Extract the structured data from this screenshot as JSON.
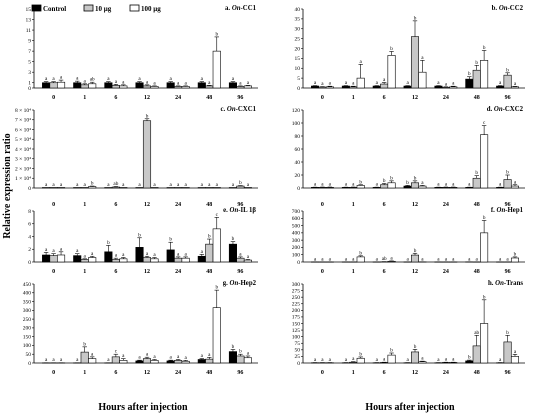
{
  "figure": {
    "ylabel": "Relative expression ratio",
    "xlabel": "Hours after injection",
    "legend": [
      "Control",
      "10 μg",
      "100 μg"
    ],
    "colors": {
      "control": "#000000",
      "dose10": "#c8c8c8",
      "dose100": "#ffffff",
      "stroke": "#000000"
    }
  },
  "chart_data": [
    {
      "id": "a",
      "type": "bar",
      "title_prefix": "a. ",
      "title_gene": "On",
      "title_suffix": "-CC1",
      "categories": [
        "0",
        "1",
        "6",
        "12",
        "24",
        "48",
        "96"
      ],
      "ylim": [
        0,
        15
      ],
      "yticks": [
        0,
        1,
        3,
        5,
        7,
        9,
        11,
        13,
        15
      ],
      "series": [
        {
          "name": "Control",
          "values": [
            1.0,
            1.0,
            1.0,
            1.0,
            1.0,
            1.0,
            1.0
          ],
          "errors": [
            0.2,
            0.3,
            0.2,
            0.2,
            0.2,
            0.2,
            0.2
          ],
          "letters": [
            "a",
            "a",
            "a",
            "a",
            "a",
            "a",
            "a"
          ]
        },
        {
          "name": "10 μg",
          "values": [
            1.0,
            0.6,
            0.5,
            0.4,
            0.3,
            0.4,
            0.3
          ],
          "errors": [
            0.2,
            0.2,
            0.2,
            0.2,
            0.1,
            0.1,
            0.1
          ],
          "letters": [
            "a",
            "a",
            "a",
            "a",
            "a",
            "a",
            "a"
          ]
        },
        {
          "name": "100 μg",
          "values": [
            1.1,
            0.8,
            0.4,
            0.3,
            0.3,
            7.0,
            0.4
          ],
          "errors": [
            0.4,
            0.3,
            0.2,
            0.1,
            0.1,
            2.7,
            0.1
          ],
          "letters": [
            "a",
            "ab",
            "a",
            "a",
            "a",
            "b",
            "a"
          ]
        }
      ]
    },
    {
      "id": "b",
      "type": "bar",
      "title_prefix": "b. ",
      "title_gene": "On",
      "title_suffix": "-CC2",
      "categories": [
        "0",
        "1",
        "6",
        "12",
        "24",
        "48",
        "96"
      ],
      "ylim": [
        0,
        40
      ],
      "yticks": [
        0,
        5,
        10,
        15,
        20,
        25,
        30,
        35,
        40
      ],
      "series": [
        {
          "name": "Control",
          "values": [
            1.0,
            1.0,
            1.0,
            1.0,
            1.0,
            4.5,
            1.0
          ],
          "errors": [
            0.2,
            0.2,
            0.2,
            0.2,
            0.2,
            1.2,
            0.2
          ],
          "letters": [
            "a",
            "a",
            "a",
            "a",
            "a",
            "b",
            "a"
          ]
        },
        {
          "name": "10 μg",
          "values": [
            0.5,
            0.6,
            2.0,
            26.0,
            0.4,
            9.0,
            6.5
          ],
          "errors": [
            0.2,
            0.3,
            0.8,
            8.0,
            0.2,
            2.5,
            1.2
          ],
          "letters": [
            "a",
            "a",
            "a",
            "b",
            "a",
            "b",
            "b"
          ]
        },
        {
          "name": "100 μg",
          "values": [
            0.6,
            5.0,
            16.5,
            8.0,
            0.6,
            14.0,
            0.6
          ],
          "errors": [
            0.3,
            7.0,
            2.0,
            6.0,
            0.3,
            5.0,
            0.2
          ],
          "letters": [
            "a",
            "a",
            "b",
            "a",
            "a",
            "b",
            "a"
          ]
        }
      ]
    },
    {
      "id": "c",
      "type": "bar",
      "title_prefix": "c. ",
      "title_gene": "On",
      "title_suffix": "-CXC1",
      "categories": [
        "0",
        "1",
        "6",
        "12",
        "24",
        "48",
        "96"
      ],
      "ylim": [
        0,
        8
      ],
      "yticks": [
        0,
        1,
        2,
        3,
        4,
        5,
        6,
        7,
        8
      ],
      "ytick_labels": [
        "0",
        "1 × 10⁴",
        "2 × 10⁴",
        "3 × 10⁴",
        "4 × 10⁴",
        "5 × 10⁴",
        "6 × 10⁴",
        "7 × 10⁴",
        "8 × 10⁴"
      ],
      "series": [
        {
          "name": "Control",
          "values": [
            0.05,
            0.05,
            0.05,
            0.05,
            0.05,
            0.05,
            0.05
          ],
          "errors": [
            0,
            0,
            0,
            0,
            0,
            0,
            0
          ],
          "letters": [
            "a",
            "a",
            "a",
            "a",
            "a",
            "a",
            "a"
          ]
        },
        {
          "name": "10 μg",
          "values": [
            0.05,
            0.05,
            0.1,
            6.9,
            0.05,
            0.05,
            0.2
          ],
          "errors": [
            0,
            0,
            0.05,
            0.2,
            0,
            0,
            0.05
          ],
          "letters": [
            "a",
            "a",
            "ab",
            "b",
            "a",
            "a",
            "b"
          ]
        },
        {
          "name": "100 μg",
          "values": [
            0.05,
            0.15,
            0.05,
            0.05,
            0.05,
            0.05,
            0.05
          ],
          "errors": [
            0,
            0.05,
            0,
            0,
            0,
            0,
            0
          ],
          "letters": [
            "a",
            "b",
            "a",
            "a",
            "a",
            "a",
            "a"
          ]
        }
      ]
    },
    {
      "id": "d",
      "type": "bar",
      "title_prefix": "d. ",
      "title_gene": "On",
      "title_suffix": "-CXC2",
      "categories": [
        "0",
        "1",
        "6",
        "12",
        "24",
        "48",
        "96"
      ],
      "ylim": [
        0,
        120
      ],
      "yticks": [
        0,
        20,
        40,
        60,
        80,
        100,
        120
      ],
      "series": [
        {
          "name": "Control",
          "values": [
            1,
            1,
            1,
            3,
            1,
            1,
            1
          ],
          "errors": [
            0.3,
            0.3,
            0.3,
            1,
            0.3,
            0.3,
            0.3
          ],
          "letters": [
            "a",
            "a",
            "a",
            "b",
            "a",
            "a",
            "a"
          ]
        },
        {
          "name": "10 μg",
          "values": [
            1,
            1,
            5,
            8,
            1,
            15,
            13
          ],
          "errors": [
            0.5,
            0.5,
            2,
            3,
            0.5,
            4,
            7
          ],
          "letters": [
            "a",
            "a",
            "b",
            "b",
            "a",
            "b",
            "b"
          ]
        },
        {
          "name": "100 μg",
          "values": [
            1,
            4,
            8,
            3,
            1,
            82,
            3
          ],
          "errors": [
            0.5,
            1,
            3,
            1,
            0.5,
            14,
            2
          ],
          "letters": [
            "a",
            "b",
            "b",
            "a",
            "a",
            "c",
            "a"
          ]
        }
      ]
    },
    {
      "id": "e",
      "type": "bar",
      "title_prefix": "e. ",
      "title_gene": "On",
      "title_suffix": "-IL 1β",
      "categories": [
        "0",
        "1",
        "6",
        "12",
        "24",
        "48",
        "96"
      ],
      "ylim": [
        0,
        8
      ],
      "yticks": [
        0,
        2,
        4,
        6,
        8
      ],
      "series": [
        {
          "name": "Control",
          "values": [
            1.1,
            1.0,
            1.6,
            2.3,
            1.9,
            0.9,
            2.8
          ],
          "errors": [
            0.4,
            0.3,
            1.0,
            1.5,
            1.2,
            0.3,
            0.4
          ],
          "letters": [
            "a",
            "a",
            "b",
            "b",
            "b",
            "a",
            "b"
          ]
        },
        {
          "name": "10 μg",
          "values": [
            1.0,
            0.4,
            0.4,
            0.7,
            0.6,
            2.8,
            0.6
          ],
          "errors": [
            0.3,
            0.1,
            0.2,
            0.2,
            0.2,
            0.8,
            0.2
          ],
          "letters": [
            "a",
            "a",
            "a",
            "a",
            "a",
            "b",
            "a"
          ]
        },
        {
          "name": "100 μg",
          "values": [
            1.1,
            0.7,
            0.5,
            0.5,
            0.6,
            5.2,
            0.3
          ],
          "errors": [
            0.5,
            0.2,
            0.2,
            0.2,
            0.2,
            1.8,
            0.1
          ],
          "letters": [
            "a",
            "a",
            "a",
            "a",
            "a",
            "c",
            "a"
          ]
        }
      ]
    },
    {
      "id": "f",
      "type": "bar",
      "title_prefix": "f. ",
      "title_gene": "On",
      "title_suffix": "-Hep1",
      "categories": [
        "0",
        "1",
        "6",
        "12",
        "24",
        "48",
        "96"
      ],
      "ylim": [
        0,
        700
      ],
      "yticks": [
        0,
        100,
        200,
        300,
        400,
        500,
        600,
        700
      ],
      "series": [
        {
          "name": "Control",
          "values": [
            1,
            1,
            1,
            1,
            1,
            2,
            1
          ],
          "errors": [
            0.5,
            0.5,
            0.5,
            0.5,
            0.5,
            1,
            0.5
          ],
          "letters": [
            "a",
            "a",
            "a",
            "a",
            "a",
            "a",
            "a"
          ]
        },
        {
          "name": "10 μg",
          "values": [
            1,
            1,
            3,
            95,
            1,
            1,
            1
          ],
          "errors": [
            0.5,
            0.5,
            2,
            25,
            0.5,
            0.5,
            0.5
          ],
          "letters": [
            "a",
            "a",
            "ab",
            "b",
            "a",
            "a",
            "a"
          ]
        },
        {
          "name": "100 μg",
          "values": [
            1,
            70,
            10,
            2,
            1,
            400,
            55
          ],
          "errors": [
            0.5,
            15,
            5,
            1,
            0.5,
            170,
            15
          ],
          "letters": [
            "a",
            "b",
            "a",
            "a",
            "a",
            "b",
            "b"
          ]
        }
      ]
    },
    {
      "id": "g",
      "type": "bar",
      "title_prefix": "g. ",
      "title_gene": "On",
      "title_suffix": "-Hep2",
      "categories": [
        "0",
        "1",
        "6",
        "12",
        "24",
        "48",
        "96"
      ],
      "ylim": [
        0,
        450
      ],
      "yticks": [
        0,
        50,
        100,
        150,
        200,
        250,
        300,
        350,
        400,
        450
      ],
      "series": [
        {
          "name": "Control",
          "values": [
            1,
            1,
            1,
            12,
            12,
            20,
            65
          ],
          "errors": [
            0.5,
            0.5,
            0.5,
            4,
            4,
            5,
            12
          ],
          "letters": [
            "a",
            "a",
            "a",
            "a",
            "a",
            "a",
            "b"
          ]
        },
        {
          "name": "10 μg",
          "values": [
            1,
            62,
            35,
            25,
            15,
            22,
            40
          ],
          "errors": [
            0.5,
            30,
            15,
            8,
            5,
            10,
            10
          ],
          "letters": [
            "a",
            "b",
            "c",
            "a",
            "a",
            "a",
            "b"
          ]
        },
        {
          "name": "100 μg",
          "values": [
            1,
            25,
            15,
            15,
            10,
            315,
            30
          ],
          "errors": [
            0.5,
            10,
            10,
            5,
            5,
            100,
            10
          ],
          "letters": [
            "a",
            "a",
            "a",
            "a",
            "a",
            "b",
            "a"
          ]
        }
      ]
    },
    {
      "id": "h",
      "type": "bar",
      "title_prefix": "h. ",
      "title_gene": "On",
      "title_suffix": "-Trans",
      "categories": [
        "0",
        "1",
        "6",
        "12",
        "24",
        "48",
        "96"
      ],
      "ylim": [
        0,
        300
      ],
      "yticks": [
        0,
        25,
        50,
        75,
        100,
        125,
        150,
        175,
        200,
        225,
        250,
        275,
        300
      ],
      "series": [
        {
          "name": "Control",
          "values": [
            1,
            1,
            1,
            1,
            1,
            8,
            1
          ],
          "errors": [
            0.5,
            0.5,
            0.5,
            0.5,
            0.5,
            3,
            0.5
          ],
          "letters": [
            "a",
            "a",
            "a",
            "a",
            "a",
            "b",
            "a"
          ]
        },
        {
          "name": "10 μg",
          "values": [
            1,
            3,
            2,
            42,
            2,
            65,
            80
          ],
          "errors": [
            0.5,
            2,
            1,
            10,
            1,
            40,
            25
          ],
          "letters": [
            "a",
            "a",
            "a",
            "b",
            "a",
            "ab",
            "b"
          ]
        },
        {
          "name": "100 μg",
          "values": [
            1,
            18,
            30,
            5,
            2,
            150,
            25
          ],
          "errors": [
            0.5,
            5,
            8,
            2,
            1,
            90,
            8
          ],
          "letters": [
            "a",
            "b",
            "b",
            "a",
            "a",
            "b",
            "a"
          ]
        }
      ]
    }
  ]
}
